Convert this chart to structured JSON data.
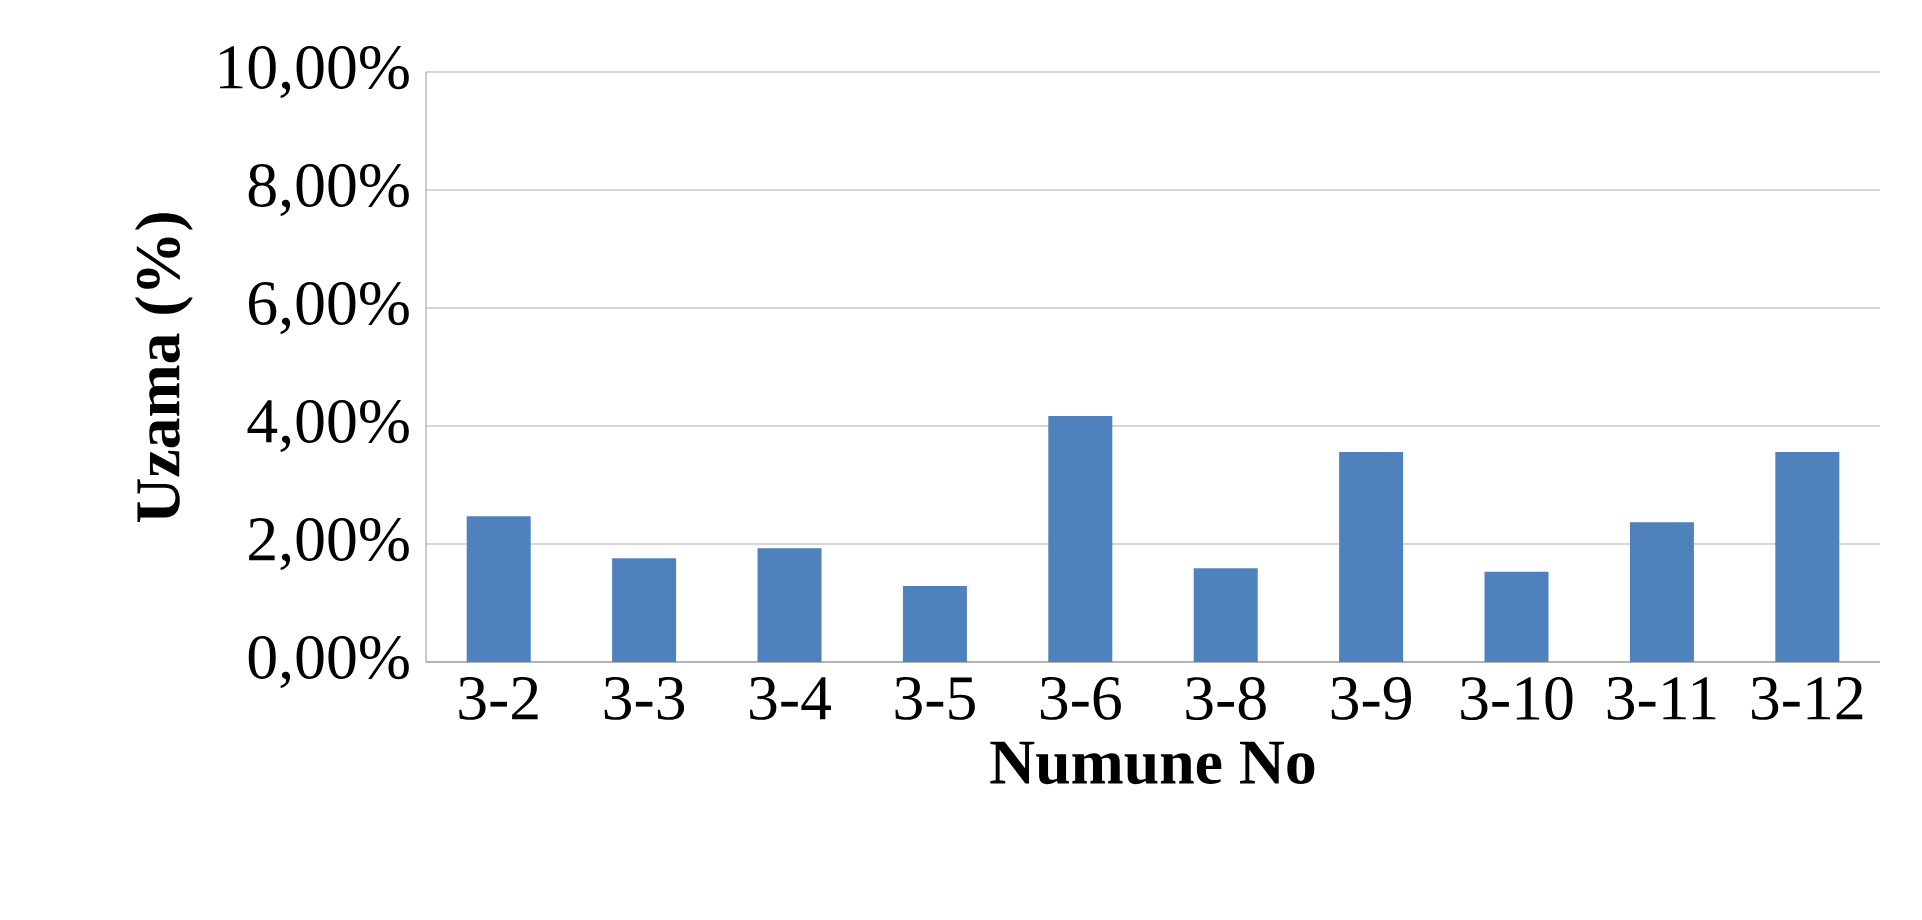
{
  "chart_data": {
    "type": "bar",
    "xlabel": "Numune No",
    "ylabel": "Uzama (%)",
    "categories": [
      "3-2",
      "3-3",
      "3-4",
      "3-5",
      "3-6",
      "3-8",
      "3-9",
      "3-10",
      "3-11",
      "3-12"
    ],
    "values": [
      2.47,
      1.76,
      1.93,
      1.29,
      4.17,
      1.59,
      3.56,
      1.53,
      2.37,
      3.56
    ],
    "color": "#4f81bd",
    "ylim": [
      0,
      10
    ],
    "yticks": [
      {
        "value": 0,
        "label": "0,00%"
      },
      {
        "value": 2,
        "label": "2,00%"
      },
      {
        "value": 4,
        "label": "4,00%"
      },
      {
        "value": 6,
        "label": "6,00%"
      },
      {
        "value": 8,
        "label": "8,00%"
      },
      {
        "value": 10,
        "label": "10,00%"
      }
    ],
    "grid": "y"
  }
}
